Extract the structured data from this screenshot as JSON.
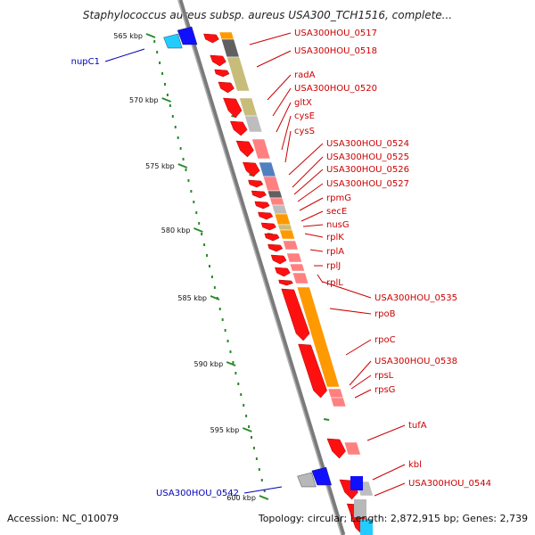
{
  "title": "Staphylococcus aureus subsp. aureus USA300_TCH1516, complete...",
  "footer": {
    "accession": "Accession: NC_010079",
    "topology": "Topology: circular; Length: 2,872,915 bp; Genes: 2,739"
  },
  "colors": {
    "backbone": "#999999",
    "kbp_ticks": "#2a8a2a",
    "gene_red": "#ff1010",
    "gene_blue": "#1010ff",
    "gene_cyan": "#22ccff",
    "cog_orange": "#ff9900",
    "cog_pink": "#ff8080",
    "cog_olive": "#c8bc7a",
    "cog_grey": "#bdbdbd",
    "cog_darkgrey": "#606060",
    "cog_steelblue": "#5080c0",
    "label_red": "#cc0000",
    "label_blue": "#0000bb"
  },
  "scale_labels": [
    "565 kbp",
    "570 kbp",
    "575 kbp",
    "580 kbp",
    "585 kbp",
    "590 kbp",
    "595 kbp",
    "600 kbp"
  ],
  "gene_labels_right": [
    "USA300HOU_0517",
    "USA300HOU_0518",
    "radA",
    "USA300HOU_0520",
    "gltX",
    "cysE",
    "cysS",
    "USA300HOU_0524",
    "USA300HOU_0525",
    "USA300HOU_0526",
    "USA300HOU_0527",
    "rpmG",
    "secE",
    "nusG",
    "rplK",
    "rplA",
    "rplJ",
    "rplL",
    "USA300HOU_0535",
    "rpoB",
    "rpoC",
    "USA300HOU_0538",
    "rpsL",
    "rpsG",
    "tufA",
    "kbl",
    "USA300HOU_0544"
  ],
  "gene_labels_left": [
    "nupC1",
    "USA300HOU_0542"
  ]
}
